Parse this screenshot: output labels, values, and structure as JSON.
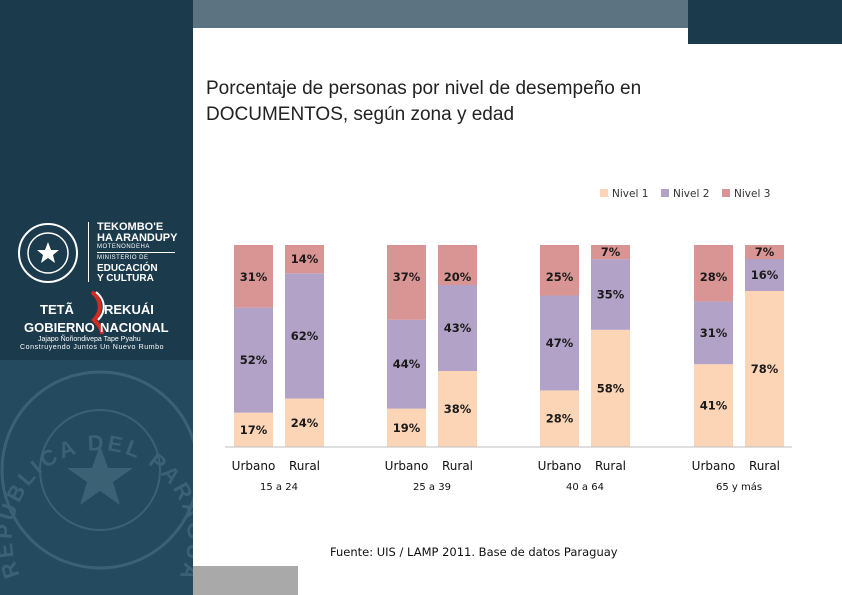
{
  "slide": {
    "title_line1": "Porcentaje de personas por nivel de desempeño en",
    "title_line2": "DOCUMENTOS, según zona y edad",
    "source": "Fuente:  UIS / LAMP 2011. Base de datos Paraguay"
  },
  "logos": {
    "ministry_line1": "TEKOMBO'E",
    "ministry_line2": "HA ARANDUPY",
    "ministry_line3": "MOTENONDEHA",
    "ministry_line4": "MINISTERIO DE",
    "ministry_line5": "EDUCACIÓN",
    "ministry_line6": "Y CULTURA",
    "gov_line1a": "TETÃ",
    "gov_line1b": "REKUÁI",
    "gov_line2a": "GOBIERNO",
    "gov_line2b": "NACIONAL",
    "gov_slogan1": "Jajapo Ñoñondivepa Tape Pyahu",
    "gov_slogan2": "Construyendo Juntos Un Nuevo Rumbo",
    "watermark_text": "REPÚBLICA DEL PARAGUAY"
  },
  "colors": {
    "nivel1": "#fbd5b5",
    "nivel2": "#b3a2c7",
    "nivel3": "#d99594"
  },
  "chart_data": {
    "type": "bar",
    "stacked": true,
    "title": "Porcentaje de personas por nivel de desempeño en DOCUMENTOS, según zona y edad",
    "legend": [
      "Nivel 1",
      "Nivel 2",
      "Nivel 3"
    ],
    "legend_position": "top-right",
    "ylim": [
      0,
      100
    ],
    "groups": [
      {
        "label": "15 a 24",
        "bars": [
          {
            "label": "Urbano",
            "values": [
              17,
              52,
              31
            ],
            "labels": [
              "17%",
              "52%",
              "31%"
            ]
          },
          {
            "label": "Rural",
            "values": [
              24,
              62,
              14
            ],
            "labels": [
              "24%",
              "62%",
              "14%"
            ]
          }
        ]
      },
      {
        "label": "25 a 39",
        "bars": [
          {
            "label": "Urbano",
            "values": [
              19,
              44,
              37
            ],
            "labels": [
              "19%",
              "44%",
              "37%"
            ]
          },
          {
            "label": "Rural",
            "values": [
              38,
              43,
              20
            ],
            "labels": [
              "38%",
              "43%",
              "20%"
            ]
          }
        ]
      },
      {
        "label": "40 a 64",
        "bars": [
          {
            "label": "Urbano",
            "values": [
              28,
              47,
              25
            ],
            "labels": [
              "28%",
              "47%",
              "25%"
            ]
          },
          {
            "label": "Rural",
            "values": [
              58,
              35,
              7
            ],
            "labels": [
              "58%",
              "35%",
              "7%"
            ]
          }
        ]
      },
      {
        "label": "65 y más",
        "bars": [
          {
            "label": "Urbano",
            "values": [
              41,
              31,
              28
            ],
            "labels": [
              "41%",
              "31%",
              "28%"
            ]
          },
          {
            "label": "Rural",
            "values": [
              78,
              16,
              7
            ],
            "labels": [
              "78%",
              "16%",
              "7%"
            ]
          }
        ]
      }
    ]
  }
}
